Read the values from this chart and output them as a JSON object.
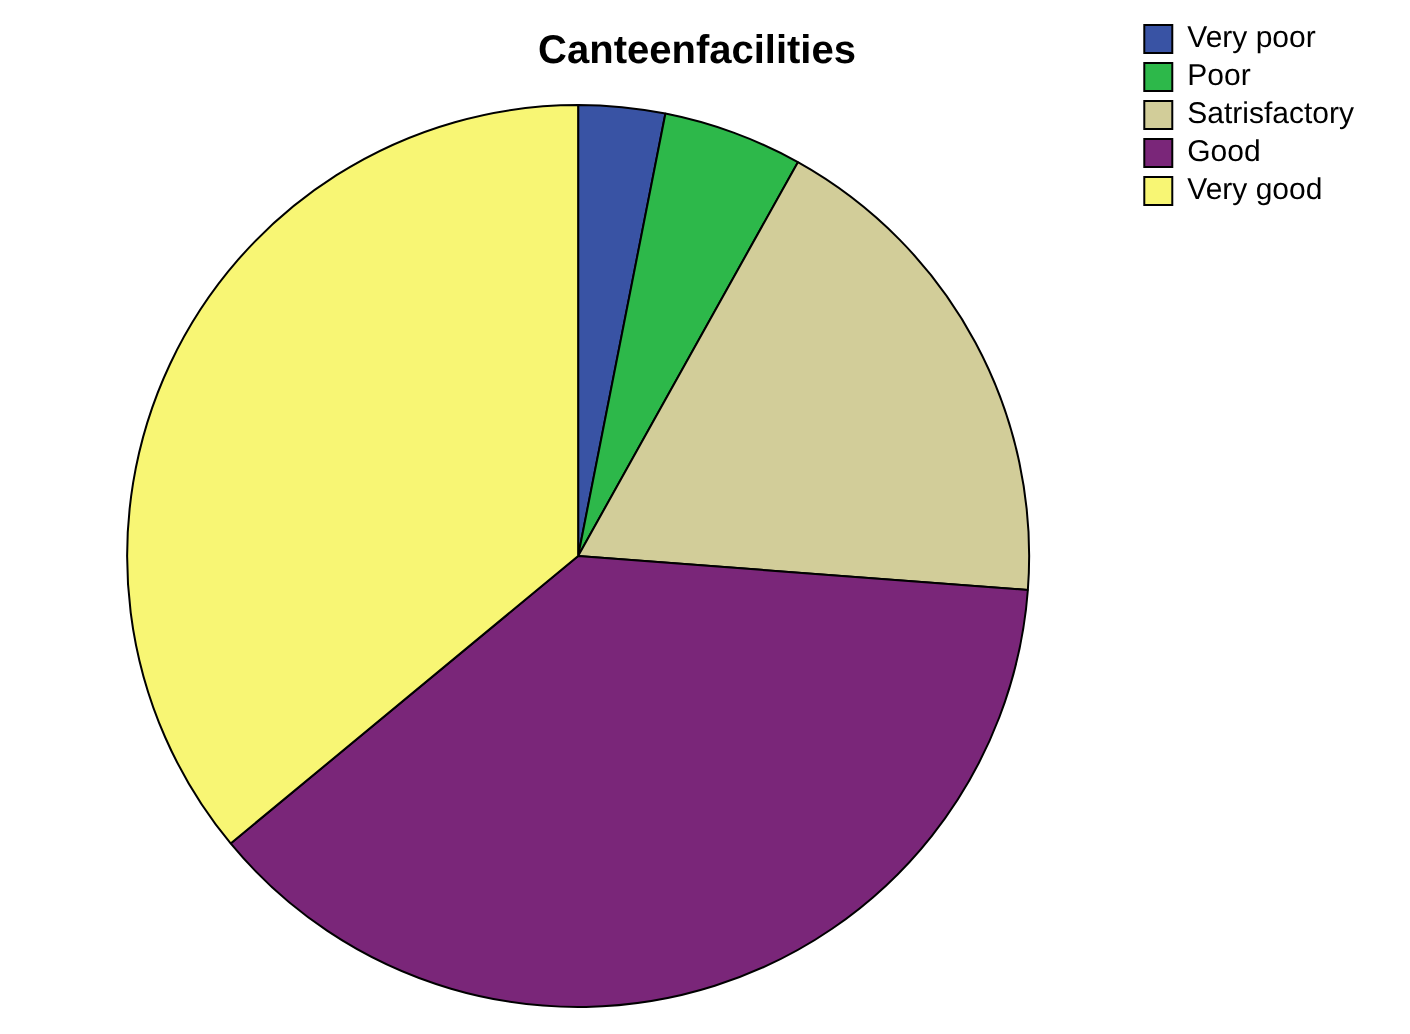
{
  "chart_data": {
    "type": "pie",
    "title": "Canteenfacilities",
    "categories": [
      "Very poor",
      "Poor",
      "Satrisfactory",
      "Good",
      "Very good"
    ],
    "values": [
      3.1,
      5.0,
      18.1,
      37.8,
      36.0
    ],
    "colors": [
      "#3953a4",
      "#2db84a",
      "#d2cd99",
      "#7a2679",
      "#f8f674"
    ],
    "legend": "top right"
  }
}
